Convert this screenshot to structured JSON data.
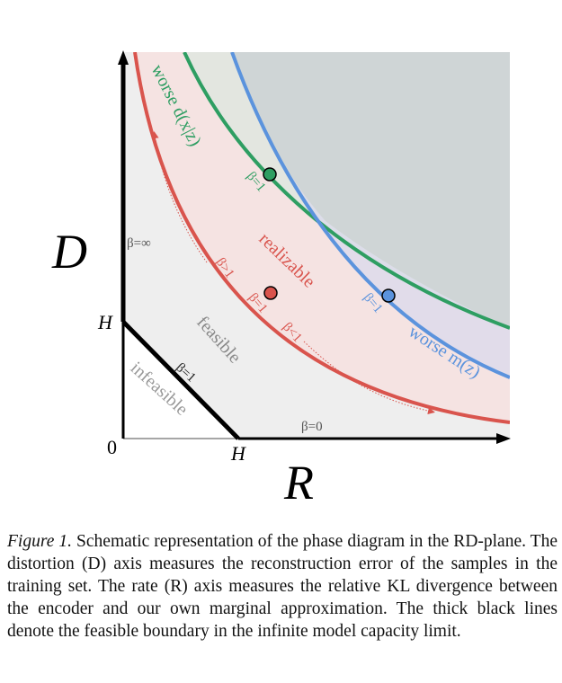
{
  "diagram": {
    "axes": {
      "y_axis_label": "D",
      "x_axis_label": "R",
      "origin_label": "0",
      "y_intercept_label": "H",
      "x_intercept_label": "H"
    },
    "regions": {
      "infeasible": "infeasible",
      "feasible": "feasible",
      "realizable": "realizable"
    },
    "curves": {
      "worse_decoder": "worse d(x|z)",
      "worse_marginal": "worse m(z)"
    },
    "beta_labels": {
      "beta_infinity": "β=∞",
      "beta_zero": "β=0",
      "beta_one_boundary": "β=1",
      "beta_one_green": "β=1",
      "beta_one_red": "β=1",
      "beta_one_blue": "β=1",
      "beta_greater": "β>1",
      "beta_less": "β<1"
    },
    "colors": {
      "green": "#2e9e62",
      "red": "#d9544d",
      "blue": "#5b93dd",
      "infeasible_fill": "#ffffff",
      "feasible_fill": "#eeeeee",
      "realizable_fill": "#f5e3e2",
      "dark_region_fill": "#cfd5d6",
      "boundary": "#000000"
    }
  },
  "caption": {
    "lead": "Figure 1.",
    "text": " Schematic representation of the phase diagram in the RD-plane. The distortion (D) axis measures the reconstruction error of the samples in the training set. The rate (R) axis measures the relative KL divergence between the encoder and our own marginal approximation. The thick black lines denote the feasible boundary in the infinite model capacity limit."
  }
}
